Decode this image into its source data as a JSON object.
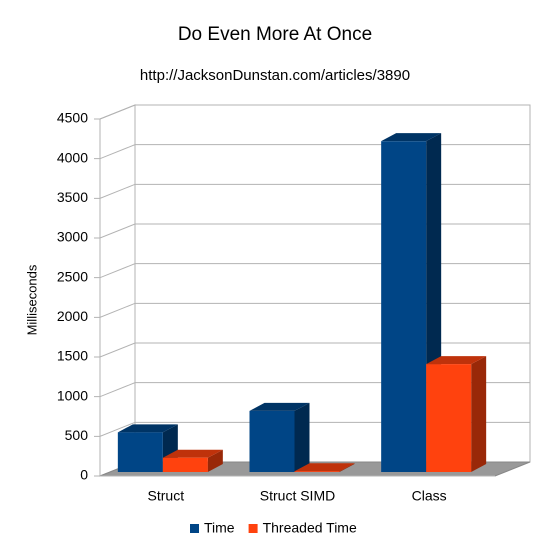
{
  "chart_data": {
    "type": "bar3d",
    "title": "Do Even More At Once",
    "subtitle": "http://JacksonDunstan.com/articles/3890",
    "y_label": "Milliseconds",
    "categories": [
      "Struct",
      "Struct SIMD",
      "Class"
    ],
    "series": [
      {
        "name": "Time",
        "color": "#004586",
        "values": [
          500,
          770,
          4170
        ]
      },
      {
        "name": "Threaded Time",
        "color": "#ff420e",
        "values": [
          180,
          10,
          1360
        ]
      }
    ],
    "ylim": [
      0,
      4500
    ],
    "yticks": [
      0,
      500,
      1000,
      1500,
      2000,
      2500,
      3000,
      3500,
      4000,
      4500
    ],
    "grid": true,
    "legend": "bottom"
  }
}
